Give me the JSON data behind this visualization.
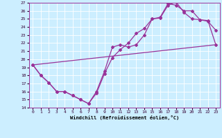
{
  "xlabel": "Windchill (Refroidissement éolien,°C)",
  "bg_color": "#cceeff",
  "grid_color": "#aaddcc",
  "line_color": "#993399",
  "xlim": [
    -0.5,
    23.5
  ],
  "ylim": [
    14,
    27
  ],
  "xticks": [
    0,
    1,
    2,
    3,
    4,
    5,
    6,
    7,
    8,
    9,
    10,
    11,
    12,
    13,
    14,
    15,
    16,
    17,
    18,
    19,
    20,
    21,
    22,
    23
  ],
  "yticks": [
    14,
    15,
    16,
    17,
    18,
    19,
    20,
    21,
    22,
    23,
    24,
    25,
    26,
    27
  ],
  "line1_x": [
    0,
    1,
    2,
    3,
    4,
    5,
    6,
    7,
    8,
    9,
    10,
    11,
    12,
    13,
    14,
    15,
    16,
    17,
    18,
    19,
    20,
    21,
    22,
    23
  ],
  "line1_y": [
    19.3,
    18.0,
    17.1,
    16.0,
    16.0,
    15.5,
    15.0,
    14.5,
    16.0,
    18.5,
    21.5,
    21.8,
    21.5,
    21.8,
    23.0,
    25.0,
    25.2,
    26.9,
    26.7,
    26.0,
    26.0,
    24.9,
    24.7,
    23.6
  ],
  "line2_x": [
    0,
    1,
    2,
    3,
    4,
    5,
    6,
    7,
    8,
    9,
    10,
    11,
    12,
    13,
    14,
    15,
    16,
    17,
    18,
    19,
    20,
    21,
    22,
    23
  ],
  "line2_y": [
    19.3,
    18.0,
    17.1,
    16.0,
    16.0,
    15.5,
    15.0,
    14.5,
    15.8,
    18.2,
    20.2,
    21.2,
    22.0,
    23.2,
    23.8,
    25.0,
    25.1,
    26.7,
    27.1,
    25.8,
    25.0,
    24.9,
    24.8,
    21.8
  ],
  "line3_x": [
    0,
    23
  ],
  "line3_y": [
    19.3,
    21.8
  ]
}
